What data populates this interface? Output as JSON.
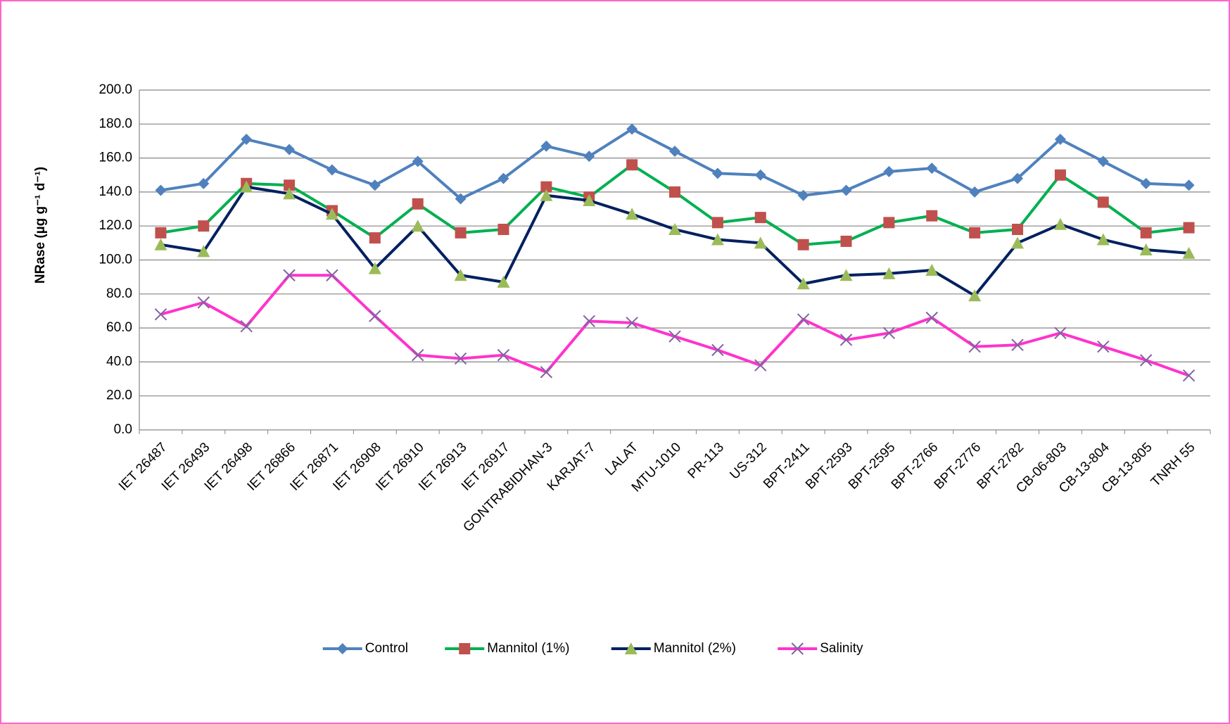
{
  "chart_data": {
    "type": "line",
    "y_label": "NRase (µg g⁻¹ d⁻¹)",
    "categories": [
      "IET 26487",
      "IET 26493",
      "IET 26498",
      "IET 26866",
      "IET 26871",
      "IET 26908",
      "IET 26910",
      "IET 26913",
      "IET 26917",
      "GONTRABIDHAN-3",
      "KARJAT-7",
      "LALAT",
      "MTU-1010",
      "PR-113",
      "US-312",
      "BPT-2411",
      "BPT-2593",
      "BPT-2595",
      "BPT-2766",
      "BPT-2776",
      "BPT-2782",
      "CB-06-803",
      "CB-13-804",
      "CB-13-805",
      "TNRH 55"
    ],
    "series": [
      {
        "name": "Control",
        "color": "#4f81bd",
        "marker": "diamond",
        "marker_color": "#4f81bd",
        "values": [
          141,
          145,
          171,
          165,
          153,
          144,
          158,
          136,
          148,
          167,
          161,
          177,
          164,
          151,
          150,
          138,
          141,
          152,
          154,
          140,
          148,
          171,
          158,
          145,
          144
        ]
      },
      {
        "name": "Mannitol (1%)",
        "color": "#00b050",
        "marker": "square",
        "marker_color": "#c0504d",
        "values": [
          116,
          120,
          145,
          144,
          129,
          113,
          133,
          116,
          118,
          143,
          137,
          156,
          140,
          122,
          125,
          109,
          111,
          122,
          126,
          116,
          118,
          150,
          134,
          116,
          119
        ]
      },
      {
        "name": "Mannitol (2%)",
        "color": "#002060",
        "marker": "triangle",
        "marker_color": "#9bbb59",
        "values": [
          109,
          105,
          143,
          139,
          127,
          95,
          120,
          91,
          87,
          138,
          135,
          127,
          118,
          112,
          110,
          86,
          91,
          92,
          94,
          79,
          110,
          121,
          112,
          106,
          104
        ]
      },
      {
        "name": "Salinity",
        "color": "#ff33cc",
        "marker": "x",
        "marker_color": "#8064a2",
        "values": [
          68,
          75,
          61,
          91,
          91,
          67,
          44,
          42,
          44,
          34,
          64,
          63,
          55,
          47,
          38,
          65,
          53,
          57,
          66,
          49,
          50,
          57,
          49,
          41,
          32
        ]
      }
    ],
    "ylim": [
      0,
      200
    ],
    "yticks": [
      {
        "value": 0,
        "label": "0.0"
      },
      {
        "value": 20,
        "label": "20.0"
      },
      {
        "value": 40,
        "label": "40.0"
      },
      {
        "value": 60,
        "label": "60.0"
      },
      {
        "value": 80,
        "label": "80.0"
      },
      {
        "value": 100,
        "label": "100.0"
      },
      {
        "value": 120,
        "label": "120.0"
      },
      {
        "value": 140,
        "label": "140.0"
      },
      {
        "value": 160,
        "label": "160.0"
      },
      {
        "value": 180,
        "label": "180.0"
      },
      {
        "value": 200,
        "label": "200.0"
      }
    ],
    "grid": true,
    "legend": "bottom"
  }
}
